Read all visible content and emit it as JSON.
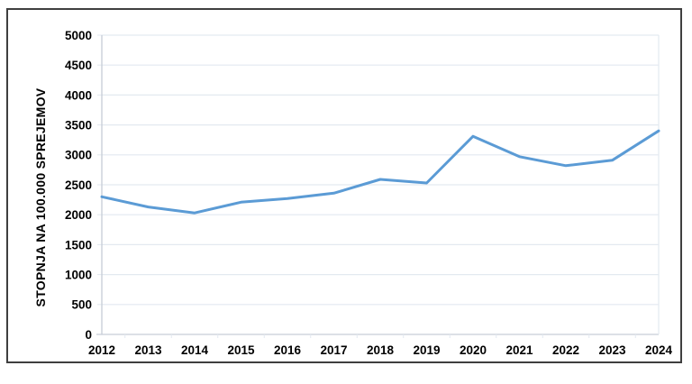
{
  "window": {
    "background_color": "#ffffff",
    "frame_border_color": "#3f3f3f"
  },
  "chart_data": {
    "type": "line",
    "categories": [
      "2012",
      "2013",
      "2014",
      "2015",
      "2016",
      "2017",
      "2018",
      "2019",
      "2020",
      "2021",
      "2022",
      "2023",
      "2024"
    ],
    "values": [
      2300,
      2130,
      2030,
      2210,
      2270,
      2360,
      2590,
      2530,
      3310,
      2970,
      2820,
      2910,
      3400
    ],
    "title": "",
    "xlabel": "",
    "ylabel": "STOPNJA NA 100.000 SPREJEMOV",
    "ylim": [
      0,
      5000
    ],
    "y_tick_step": 500,
    "y_tick_labels": [
      "0",
      "500",
      "1000",
      "1500",
      "2000",
      "2500",
      "3000",
      "3500",
      "4000",
      "4500",
      "5000"
    ],
    "grid": "horizontal",
    "legend": "none",
    "line_color": "#5b9bd5",
    "axis_color": "#c6cdd6",
    "gridline_color": "#e3e9f0",
    "text_color": "#000000"
  }
}
